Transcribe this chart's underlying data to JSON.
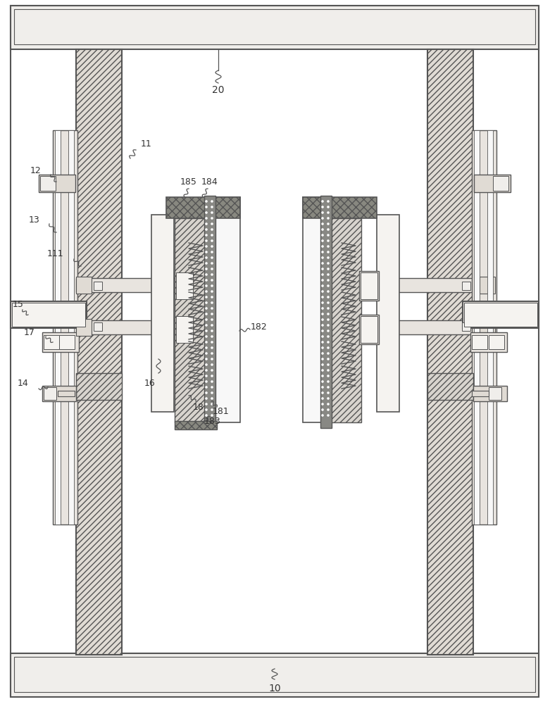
{
  "bg_color": "#ffffff",
  "line_color": "#555555",
  "fill_hatch_light": "#e8e4df",
  "fill_hatch_dark": "#b0a898",
  "fill_white": "#ffffff",
  "fill_gray_light": "#d8d4ce",
  "fill_dot_dark": "#888884",
  "fig_w": 7.81,
  "fig_h": 10.0,
  "dpi": 100
}
